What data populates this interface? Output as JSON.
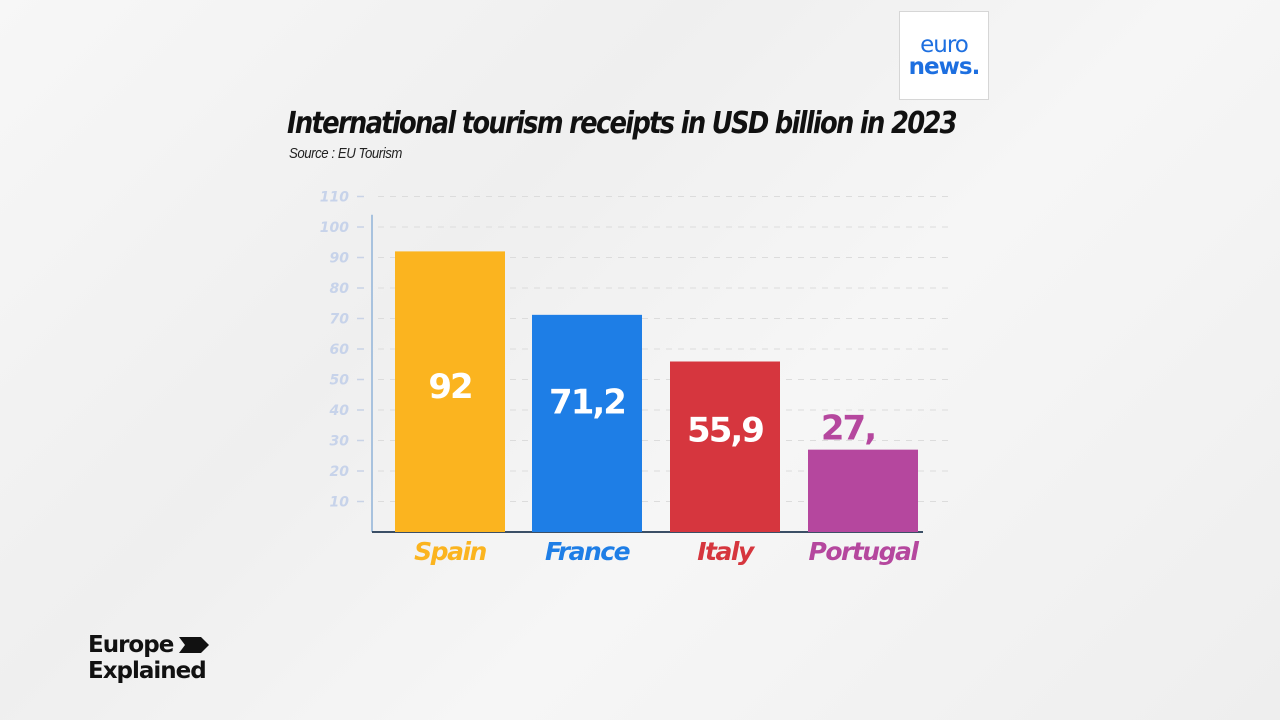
{
  "logo": {
    "line1": "euro",
    "line2": "news."
  },
  "branding": {
    "line1": "Europe",
    "line2": "Explained"
  },
  "chart_data": {
    "type": "bar",
    "title": "International tourism receipts in USD billion in 2023",
    "subtitle": "Source : EU Tourism",
    "categories": [
      "Spain",
      "France",
      "Italy",
      "Portugal"
    ],
    "values": [
      92,
      71.2,
      55.9,
      27
    ],
    "data_labels": [
      "92",
      "71,2",
      "55,9",
      "27,"
    ],
    "colors": [
      "#fbb41f",
      "#1e7ee6",
      "#d6363e",
      "#b5479e"
    ],
    "yticks": [
      10,
      20,
      30,
      40,
      50,
      60,
      70,
      80,
      90,
      100,
      110
    ],
    "ylim": [
      0,
      110
    ],
    "grid": true,
    "xlabel": "",
    "ylabel": ""
  }
}
